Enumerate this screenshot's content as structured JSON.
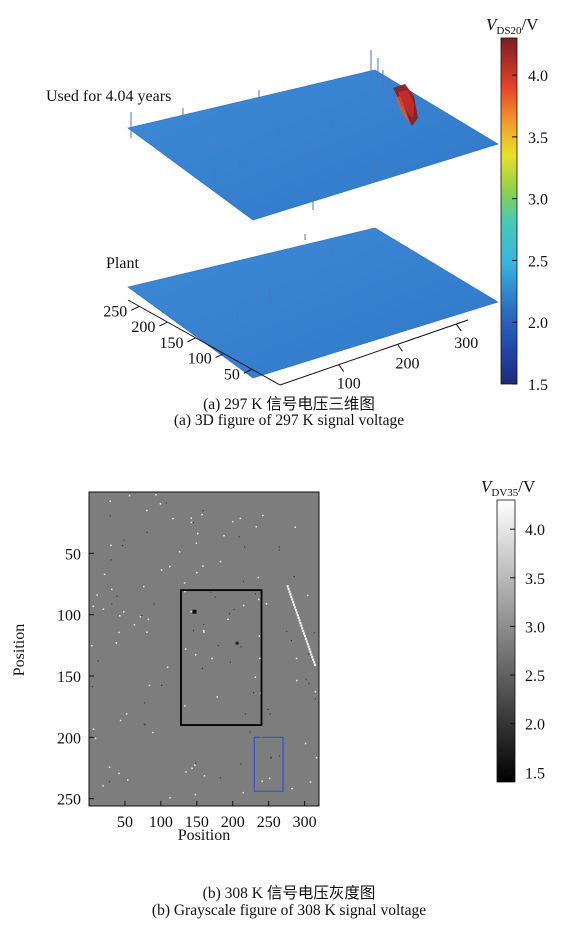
{
  "chart_data": [
    {
      "type": "surface3d",
      "caption_cn": "(a) 297 K 信号电压三维图",
      "caption_en": "(a) 3D figure of 297 K signal voltage",
      "surfaces": [
        {
          "name": "Used for 4.04 years",
          "base_value": 2.4
        },
        {
          "name": "Plant",
          "base_value": 2.4
        }
      ],
      "x_ticks": [
        100,
        200,
        300
      ],
      "y_ticks": [
        50,
        100,
        150,
        200,
        250
      ],
      "colorbar": {
        "label_main": "V",
        "label_sub": "DS20",
        "label_unit": "/V",
        "range": [
          1.5,
          4.3
        ],
        "ticks": [
          1.5,
          2.0,
          2.5,
          3.0,
          3.5,
          4.0
        ],
        "tick_labels": [
          "1.5",
          "2.0",
          "2.5",
          "3.0",
          "3.5",
          "4.0"
        ],
        "colormap": "jet"
      }
    },
    {
      "type": "heatmap",
      "caption_cn": "(b) 308 K 信号电压灰度图",
      "caption_en": "(b) Grayscale figure of 308 K signal voltage",
      "xlabel": "Position",
      "ylabel": "Position",
      "xlim": [
        0,
        320
      ],
      "ylim": [
        256,
        0
      ],
      "x_ticks": [
        50,
        100,
        150,
        200,
        250,
        300
      ],
      "y_ticks": [
        50,
        100,
        150,
        200,
        250
      ],
      "base_value": 2.6,
      "highlight_boxes": [
        {
          "x": [
            128,
            240
          ],
          "y": [
            80,
            190
          ],
          "color": "#000000"
        },
        {
          "x": [
            230,
            270
          ],
          "y": [
            200,
            244
          ],
          "color": "#3355cc"
        }
      ],
      "colorbar": {
        "label_main": "V",
        "label_sub": "DV35",
        "label_unit": "/V",
        "range": [
          1.4,
          4.3
        ],
        "ticks": [
          1.5,
          2.0,
          2.5,
          3.0,
          3.5,
          4.0
        ],
        "tick_labels": [
          "1.5",
          "2.0",
          "2.5",
          "3.0",
          "3.5",
          "4.0"
        ],
        "colormap": "gray"
      }
    }
  ]
}
